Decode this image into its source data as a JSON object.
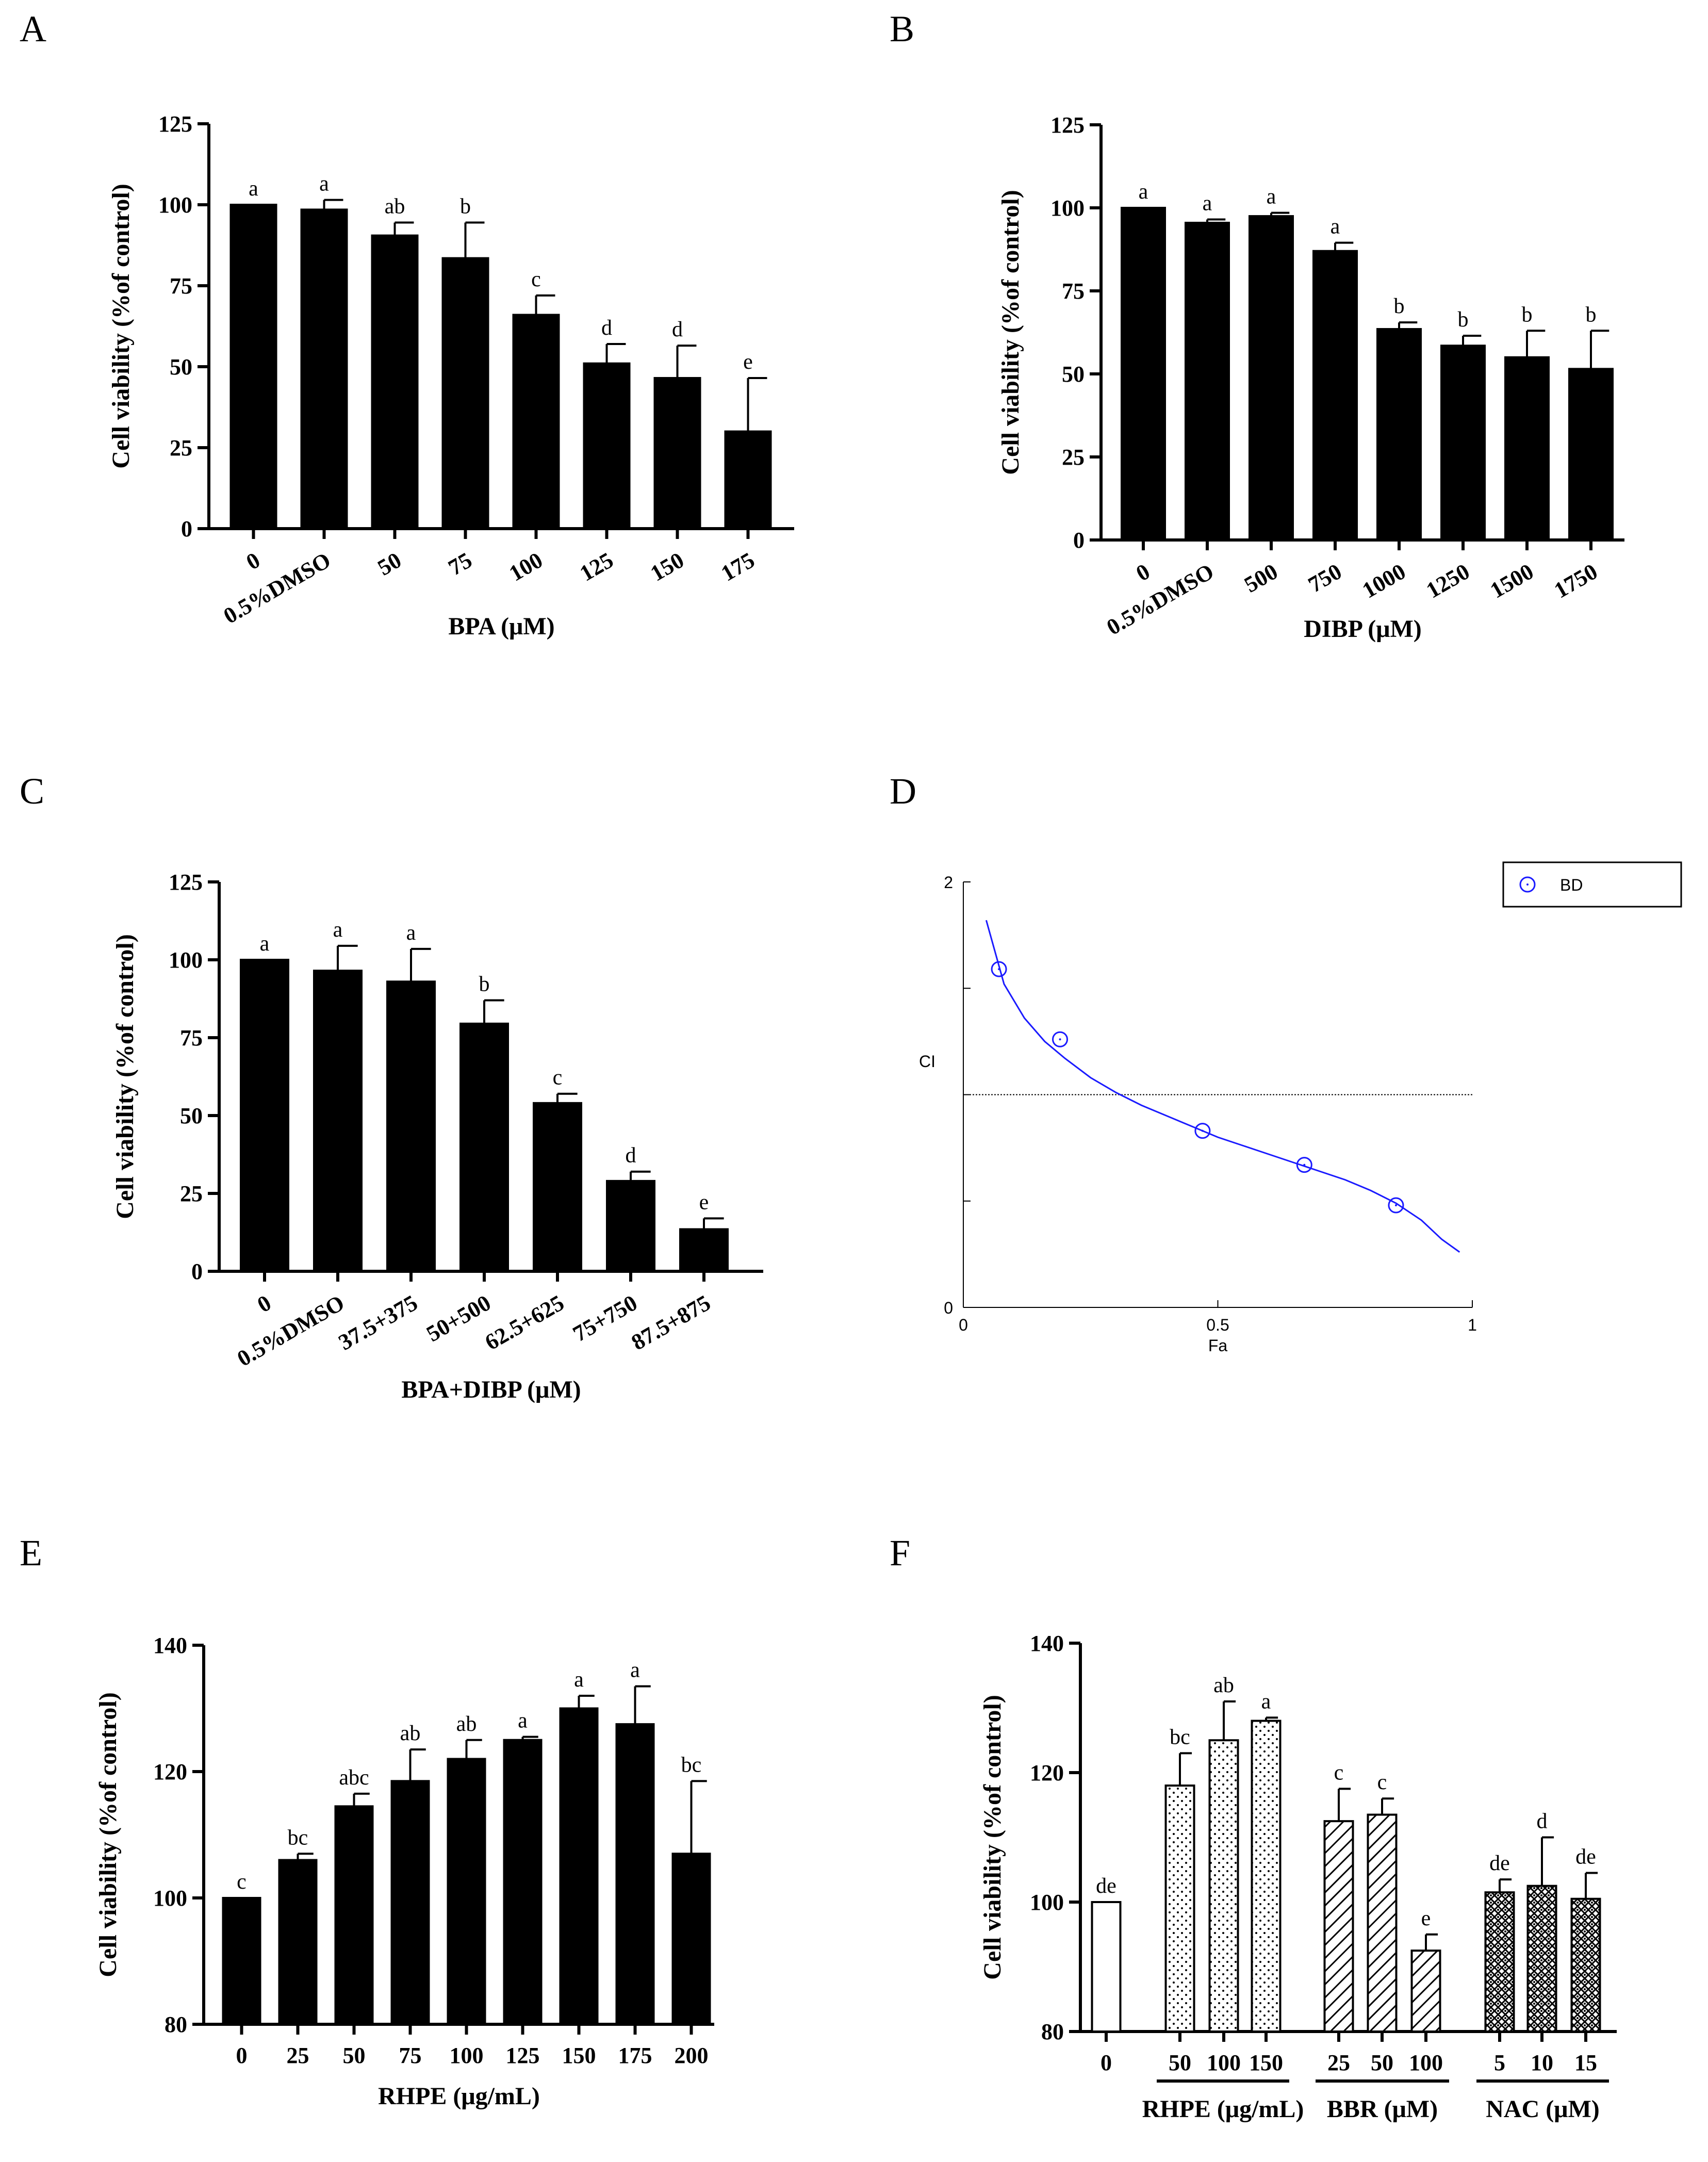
{
  "chart_data": [
    {
      "panel": "A",
      "type": "bar",
      "categories": [
        "0",
        "0.5%DMSO",
        "50",
        "75",
        "100",
        "125",
        "150",
        "175"
      ],
      "values": [
        100,
        98.5,
        90.5,
        83.5,
        66,
        51,
        46.5,
        30
      ],
      "errors": [
        0,
        3,
        4,
        11,
        6,
        6,
        10,
        16.5
      ],
      "letters": [
        "a",
        "a",
        "ab",
        "b",
        "c",
        "d",
        "d",
        "e"
      ],
      "xlabel": "BPA (μM)",
      "ylabel": "Cell viability (%of control)",
      "ylim": [
        0,
        125
      ],
      "yticks": [
        0,
        25,
        50,
        75,
        100,
        125
      ],
      "xtick_rotate": true
    },
    {
      "panel": "B",
      "type": "bar",
      "categories": [
        "0",
        "0.5%DMSO",
        "500",
        "750",
        "1000",
        "1250",
        "1500",
        "1750"
      ],
      "values": [
        100,
        95.5,
        97.5,
        87,
        63.5,
        58.5,
        55,
        51.5
      ],
      "errors": [
        0,
        1,
        1,
        2.5,
        2,
        3,
        8,
        11.5
      ],
      "letters": [
        "a",
        "a",
        "a",
        "a",
        "b",
        "b",
        "b",
        "b"
      ],
      "xlabel": "DIBP (μM)",
      "ylabel": "Cell viability (%of control)",
      "ylim": [
        0,
        125
      ],
      "yticks": [
        0,
        25,
        50,
        75,
        100,
        125
      ],
      "xtick_rotate": true
    },
    {
      "panel": "C",
      "type": "bar",
      "categories": [
        "0",
        "0.5%DMSO",
        "37.5+375",
        "50+500",
        "62.5+625",
        "75+750",
        "87.5+875"
      ],
      "values": [
        100,
        96.5,
        93,
        79.5,
        54,
        29,
        13.5
      ],
      "errors": [
        0,
        8,
        10.5,
        7.5,
        3,
        3,
        3.5
      ],
      "letters": [
        "a",
        "a",
        "a",
        "b",
        "c",
        "d",
        "e"
      ],
      "xlabel": "BPA+DIBP (μM)",
      "ylabel": "Cell viability (%of control)",
      "ylim": [
        0,
        125
      ],
      "yticks": [
        0,
        25,
        50,
        75,
        100,
        125
      ],
      "xtick_rotate": true
    },
    {
      "panel": "D",
      "type": "scatter",
      "x": [
        0.07,
        0.19,
        0.47,
        0.67,
        0.85
      ],
      "y": [
        1.59,
        1.26,
        0.83,
        0.67,
        0.48
      ],
      "fit_curve": {
        "x": [
          0.045,
          0.08,
          0.12,
          0.16,
          0.2,
          0.25,
          0.3,
          0.35,
          0.4,
          0.45,
          0.5,
          0.55,
          0.6,
          0.65,
          0.7,
          0.75,
          0.8,
          0.85,
          0.9,
          0.94,
          0.975
        ],
        "y": [
          1.82,
          1.52,
          1.36,
          1.25,
          1.17,
          1.08,
          1.01,
          0.95,
          0.9,
          0.85,
          0.8,
          0.76,
          0.72,
          0.68,
          0.64,
          0.6,
          0.55,
          0.49,
          0.41,
          0.32,
          0.26
        ]
      },
      "reference_line": 1,
      "series": [
        {
          "name": "BD"
        }
      ],
      "xlabel": "Fa",
      "ylabel": "CI",
      "xlim": [
        0,
        1
      ],
      "ylim": [
        0,
        2
      ],
      "xticks": [
        "0",
        "0.5",
        "1"
      ],
      "yticks": [
        "0",
        "2"
      ],
      "color": "#1a1aff",
      "legend": "top-right"
    },
    {
      "panel": "E",
      "type": "bar",
      "categories": [
        "0",
        "25",
        "50",
        "75",
        "100",
        "125",
        "150",
        "175",
        "200"
      ],
      "values": [
        100,
        106,
        114.5,
        118.5,
        122,
        125,
        130,
        127.5,
        107
      ],
      "errors": [
        0,
        1,
        2,
        5,
        3,
        0.5,
        2,
        6,
        11.5
      ],
      "letters": [
        "c",
        "bc",
        "abc",
        "ab",
        "ab",
        "a",
        "a",
        "a",
        "bc"
      ],
      "xlabel": "RHPE (μg/mL)",
      "ylabel": "Cell viability (%of control)",
      "ylim": [
        80,
        140
      ],
      "yticks": [
        80,
        100,
        120,
        140
      ],
      "xtick_rotate": false
    },
    {
      "panel": "F",
      "type": "bar",
      "categories": [
        "0",
        "50",
        "100",
        "150",
        "25",
        "50",
        "100",
        "5",
        "10",
        "15"
      ],
      "values": [
        100,
        118,
        125,
        128,
        112.5,
        113.5,
        92.5,
        101.5,
        102.5,
        100.5
      ],
      "errors": [
        0,
        5,
        6,
        0.5,
        5,
        2.5,
        2.5,
        2,
        7.5,
        4
      ],
      "letters": [
        "de",
        "bc",
        "ab",
        "a",
        "c",
        "c",
        "e",
        "de",
        "d",
        "de"
      ],
      "groups": [
        {
          "label": "RHPE (μg/mL)",
          "members": [
            1,
            2,
            3
          ],
          "pattern": "dots"
        },
        {
          "label": "BBR (μM)",
          "members": [
            4,
            5,
            6
          ],
          "pattern": "hatch"
        },
        {
          "label": "NAC (μM)",
          "members": [
            7,
            8,
            9
          ],
          "pattern": "weave"
        }
      ],
      "ylabel": "Cell viability (%of control)",
      "ylim": [
        80,
        140
      ],
      "yticks": [
        80,
        100,
        120,
        140
      ],
      "xtick_rotate": false
    }
  ],
  "panel_labels": [
    "A",
    "B",
    "C",
    "D",
    "E",
    "F"
  ]
}
